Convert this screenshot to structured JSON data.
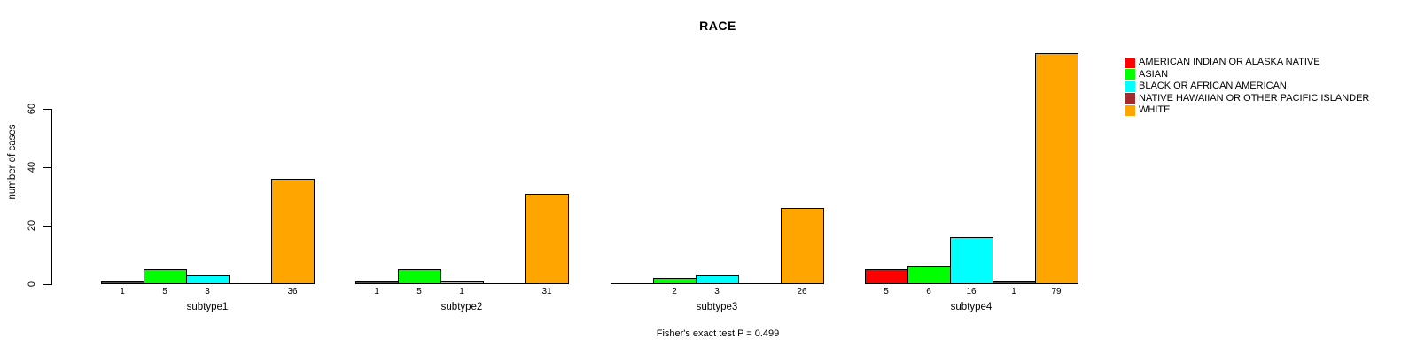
{
  "figure": {
    "title": "RACE",
    "y_axis_label": "number of cases",
    "footer": "Fisher's exact test P = 0.499"
  },
  "chart_data": {
    "type": "bar",
    "title": "RACE",
    "xlabel": "",
    "ylabel": "number of cases",
    "ylim": [
      0,
      60
    ],
    "yticks": [
      0,
      20,
      40,
      60
    ],
    "grid": false,
    "legend_position": "right-outside",
    "bar_value_labels": true,
    "zero_value_labels_hidden": true,
    "categories": [
      "subtype1",
      "subtype2",
      "subtype3",
      "subtype4"
    ],
    "series": [
      {
        "name": "AMERICAN INDIAN OR ALASKA NATIVE",
        "color": "#ff0000",
        "values": [
          1,
          1,
          0,
          5
        ]
      },
      {
        "name": "ASIAN",
        "color": "#00ff00",
        "values": [
          5,
          5,
          2,
          6
        ]
      },
      {
        "name": "BLACK OR AFRICAN AMERICAN",
        "color": "#00ffff",
        "values": [
          3,
          1,
          3,
          16
        ]
      },
      {
        "name": "NATIVE HAWAIIAN OR OTHER PACIFIC ISLANDER",
        "color": "#a52a2a",
        "values": [
          0,
          0,
          0,
          1
        ]
      },
      {
        "name": "WHITE",
        "color": "#ffa500",
        "values": [
          36,
          31,
          26,
          79
        ]
      }
    ],
    "annotation": "Fisher's exact test P = 0.499"
  }
}
